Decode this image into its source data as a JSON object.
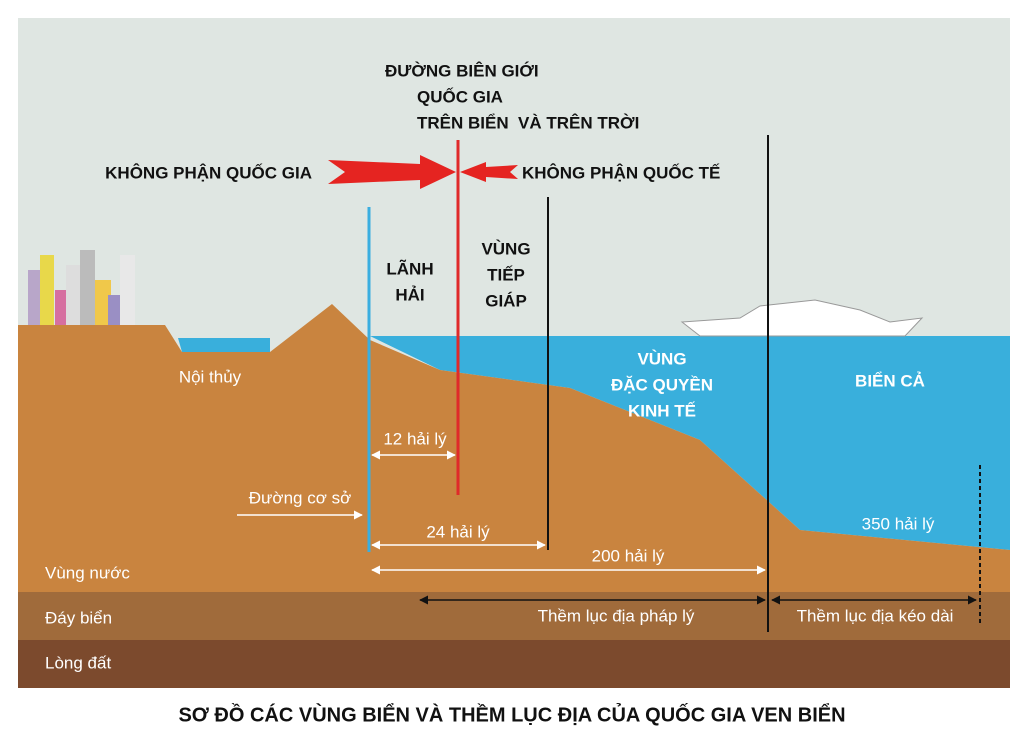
{
  "title": "SƠ ĐỒ CÁC VÙNG BIỂN VÀ THỀM LỤC ĐỊA CỦA QUỐC GIA VEN BIỂN",
  "border_label": [
    "ĐƯỜNG BIÊN GIỚI",
    "QUỐC GIA",
    "TRÊN BIỂN  VÀ TRÊN TRỜI"
  ],
  "airspace": {
    "national": "KHÔNG PHẬN QUỐC GIA",
    "international": "KHÔNG PHẬN QUỐC TẾ"
  },
  "zones": {
    "territorial_sea": [
      "LÃNH",
      "HẢI"
    ],
    "contiguous": [
      "VÙNG",
      "TIẾP",
      "GIÁP"
    ],
    "eez": [
      "VÙNG",
      "ĐẶC QUYỀN",
      "KINH TẾ"
    ],
    "high_seas": "BIỂN CẢ",
    "internal_waters": "Nội thủy"
  },
  "distances": {
    "d12": "12 hải lý",
    "d24": "24 hải lý",
    "d200": "200 hải lý",
    "d350": "350 hải lý"
  },
  "baseline": "Đường cơ sở",
  "shelf": {
    "legal": "Thềm lục địa pháp lý",
    "extended": "Thềm lục địa kéo dài"
  },
  "layers": [
    "Vùng nước",
    "Đáy biển",
    "Lòng đất"
  ]
}
